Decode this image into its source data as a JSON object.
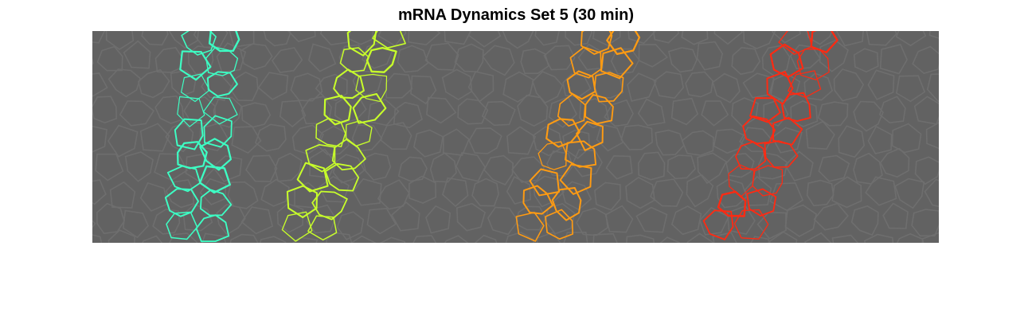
{
  "figure": {
    "title": "mRNA Dynamics Set 5 (30 min)"
  },
  "image": {
    "description_name": "segmented-tissue-micrograph",
    "background_color": "#626262",
    "membrane_color": "#6e6e6e",
    "stripes": [
      {
        "name": "cyan-cell-stripe",
        "color": "#3dffc4"
      },
      {
        "name": "yellow-cell-stripe",
        "color": "#c8ff2a"
      },
      {
        "name": "orange-cell-stripe",
        "color": "#ff9b12"
      },
      {
        "name": "red-cell-stripe",
        "color": "#ff2a12"
      }
    ]
  }
}
